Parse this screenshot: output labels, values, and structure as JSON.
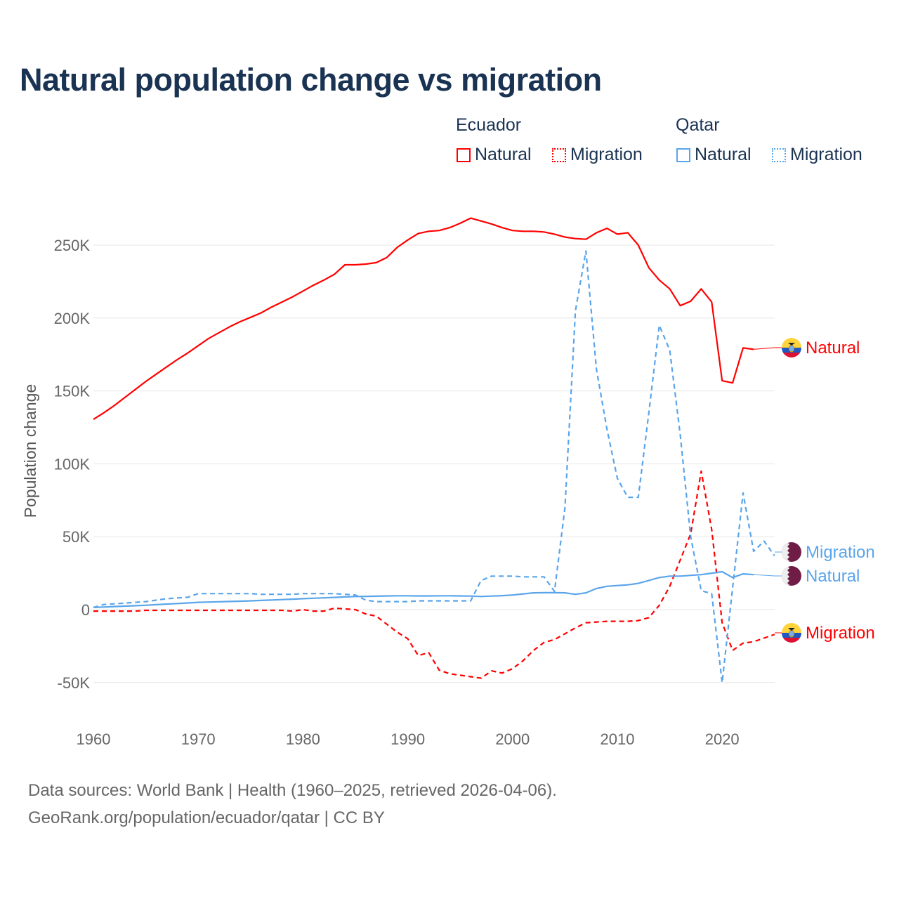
{
  "chart_data": {
    "type": "line",
    "title": "Natural population change vs migration",
    "xlabel": "",
    "ylabel": "Population change",
    "xlim": [
      1960,
      2025
    ],
    "ylim": [
      -75000,
      275000
    ],
    "x_ticks": [
      "1960",
      "1970",
      "1980",
      "1990",
      "2000",
      "2010",
      "2020"
    ],
    "y_ticks": [
      "-50K",
      "0",
      "50K",
      "100K",
      "150K",
      "200K",
      "250K"
    ],
    "y_tick_values": [
      -50,
      0,
      50,
      100,
      150,
      200,
      250
    ],
    "units": "thousands",
    "grid": true,
    "legend": {
      "groups": [
        "Ecuador",
        "Qatar"
      ],
      "items": [
        "Natural",
        "Migration",
        "Natural",
        "Migration"
      ],
      "placement": "top-right"
    },
    "x_start": 1960,
    "series": [
      {
        "name": "Ecuador Natural",
        "country": "Ecuador",
        "kind": "Natural",
        "label": "Natural",
        "color": "#ff0000",
        "dashed": false,
        "extend_to": 2025,
        "values": [
          130.5,
          135,
          140,
          145.5,
          151,
          156.5,
          161.5,
          166.5,
          171.5,
          176,
          181,
          186,
          190,
          194,
          197.5,
          200.5,
          203.5,
          207.5,
          211,
          214.5,
          218.5,
          222.5,
          226,
          230,
          236.5,
          236.5,
          237,
          238,
          241.5,
          248.5,
          253.5,
          258,
          259.5,
          260,
          262,
          265,
          268.5,
          266.5,
          264.5,
          262,
          260,
          259.5,
          259.5,
          259,
          257.5,
          255.5,
          254.5,
          254,
          258.5,
          261.5,
          257.5,
          258.5,
          250,
          234.5,
          226,
          220,
          208.5,
          211.5,
          220,
          211,
          157,
          155.5,
          179.5,
          178.5,
          null,
          null
        ]
      },
      {
        "name": "Ecuador Migration",
        "country": "Ecuador",
        "kind": "Migration",
        "label": "Migration",
        "color": "#ff0000",
        "dashed": true,
        "values": [
          -1,
          -1,
          -1,
          -1,
          -1,
          -0.5,
          -0.5,
          -0.5,
          -0.5,
          -0.5,
          -0.5,
          -0.5,
          -0.5,
          -0.5,
          -0.5,
          -0.5,
          -0.5,
          -0.5,
          -0.5,
          -1,
          0,
          -1,
          -1,
          1,
          0.5,
          0,
          -3,
          -4.5,
          -10,
          -15.5,
          -20,
          -31.5,
          -29.5,
          -41.5,
          -44,
          -45,
          -46,
          -47,
          -42,
          -43.5,
          -40.5,
          -35,
          -28,
          -22.5,
          -20.5,
          -16.5,
          -12.5,
          -9,
          -8.5,
          -8,
          -8,
          -8,
          -7.5,
          -5.5,
          3,
          16,
          34,
          52,
          95,
          55,
          -9,
          -28,
          -23,
          -22,
          -19.5,
          -17
        ]
      },
      {
        "name": "Qatar Natural",
        "country": "Qatar",
        "kind": "Natural",
        "label": "Natural",
        "color": "#5aa5ea",
        "dashed": false,
        "extend_to": 2025,
        "values": [
          1.5,
          1.8,
          2.1,
          2.4,
          2.7,
          3,
          3.4,
          3.8,
          4.2,
          4.6,
          5,
          5.2,
          5.4,
          5.6,
          5.8,
          6,
          6.3,
          6.6,
          6.9,
          7.2,
          7.5,
          7.8,
          8.1,
          8.4,
          8.7,
          9,
          9.1,
          9.2,
          9.4,
          9.5,
          9.5,
          9.4,
          9.4,
          9.5,
          9.5,
          9.4,
          9.3,
          9,
          9.3,
          9.6,
          10,
          10.8,
          11.5,
          11.6,
          11.6,
          11.5,
          10.5,
          11.5,
          14.5,
          16,
          16.5,
          17,
          18,
          20,
          22,
          23,
          23,
          23.5,
          24,
          25,
          26,
          22,
          24.5,
          24,
          null,
          null
        ]
      },
      {
        "name": "Qatar Migration",
        "country": "Qatar",
        "kind": "Migration",
        "label": "Migration",
        "color": "#5aa5ea",
        "dashed": true,
        "values": [
          1.5,
          3.5,
          4,
          4.5,
          5,
          5.5,
          6.5,
          7.5,
          8,
          8.5,
          11,
          11,
          11,
          11,
          11,
          11,
          10.5,
          10.5,
          10.5,
          10.5,
          11,
          11,
          11,
          11,
          10.5,
          10,
          6.5,
          5.5,
          5.5,
          5.5,
          5.5,
          6,
          6,
          6,
          6,
          6,
          6,
          20,
          23,
          23,
          23,
          22.5,
          22.5,
          22.5,
          12.5,
          70,
          205,
          246,
          165,
          124,
          90,
          77,
          77,
          135,
          195,
          178,
          120,
          50,
          13,
          11,
          -50,
          15,
          80,
          40,
          47,
          37
        ]
      }
    ]
  },
  "legend_labels": {
    "ecuador": "Ecuador",
    "qatar": "Qatar",
    "natural": "Natural",
    "migration": "Migration"
  },
  "colors": {
    "ecuador": "#ff0000",
    "qatar": "#5aa5ea",
    "title": "#1a3352",
    "grid": "#e6e6e6"
  },
  "footer": {
    "line1": "Data sources: World Bank | Health (1960–2025, retrieved 2026-04-06).",
    "line2": "GeoRank.org/population/ecuador/qatar | CC BY"
  }
}
